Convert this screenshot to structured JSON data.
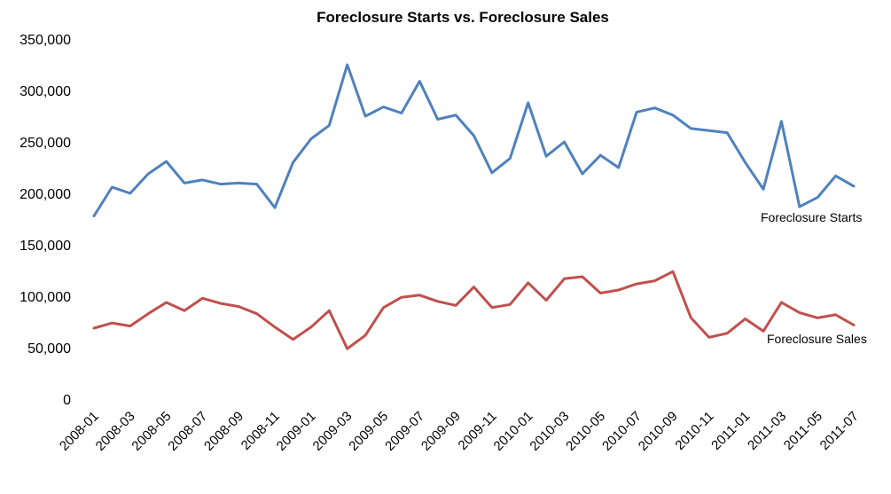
{
  "chart_data": {
    "type": "line",
    "title": "Foreclosure Starts vs. Foreclosure Sales",
    "xlabel": "",
    "ylabel": "",
    "ylim": [
      0,
      350000
    ],
    "yticks": [
      "0",
      "50,000",
      "100,000",
      "150,000",
      "200,000",
      "250,000",
      "300,000",
      "350,000"
    ],
    "ytick_values": [
      0,
      50000,
      100000,
      150000,
      200000,
      250000,
      300000,
      350000
    ],
    "x": [
      "2008-01",
      "2008-02",
      "2008-03",
      "2008-04",
      "2008-05",
      "2008-06",
      "2008-07",
      "2008-08",
      "2008-09",
      "2008-10",
      "2008-11",
      "2008-12",
      "2009-01",
      "2009-02",
      "2009-03",
      "2009-04",
      "2009-05",
      "2009-06",
      "2009-07",
      "2009-08",
      "2009-09",
      "2009-10",
      "2009-11",
      "2009-12",
      "2010-01",
      "2010-02",
      "2010-03",
      "2010-04",
      "2010-05",
      "2010-06",
      "2010-07",
      "2010-08",
      "2010-09",
      "2010-10",
      "2010-11",
      "2010-12",
      "2011-01",
      "2011-02",
      "2011-03",
      "2011-04",
      "2011-05",
      "2011-06",
      "2011-07"
    ],
    "xticks_shown": [
      "2008-01",
      "2008-03",
      "2008-05",
      "2008-07",
      "2008-09",
      "2008-11",
      "2009-01",
      "2009-03",
      "2009-05",
      "2009-07",
      "2009-09",
      "2009-11",
      "2010-01",
      "2010-03",
      "2010-05",
      "2010-07",
      "2010-09",
      "2010-11",
      "2011-01",
      "2011-03",
      "2011-05",
      "2011-07"
    ],
    "grid": false,
    "legend": "inline labels at right",
    "series": [
      {
        "name": "Foreclosure Starts",
        "color": "#4F81BD",
        "values": [
          178000,
          206000,
          200000,
          219000,
          231000,
          210000,
          213000,
          209000,
          210000,
          209000,
          186000,
          230000,
          253000,
          266000,
          325000,
          275000,
          284000,
          278000,
          309000,
          272000,
          276000,
          256000,
          220000,
          234000,
          288000,
          236000,
          250000,
          219000,
          237000,
          225000,
          279000,
          283000,
          276000,
          263000,
          261000,
          259000,
          230000,
          204000,
          270000,
          187000,
          196000,
          217000,
          207000
        ]
      },
      {
        "name": "Foreclosure Sales",
        "color": "#C0504D",
        "values": [
          69000,
          74000,
          71000,
          83000,
          94000,
          86000,
          98000,
          93000,
          90000,
          83000,
          70000,
          58000,
          70000,
          86000,
          49000,
          62000,
          89000,
          99000,
          101000,
          95000,
          91000,
          109000,
          89000,
          92000,
          113000,
          96000,
          117000,
          119000,
          103000,
          106000,
          112000,
          115000,
          124000,
          79000,
          60000,
          64000,
          78000,
          66000,
          94000,
          84000,
          79000,
          82000,
          72000
        ]
      }
    ]
  }
}
